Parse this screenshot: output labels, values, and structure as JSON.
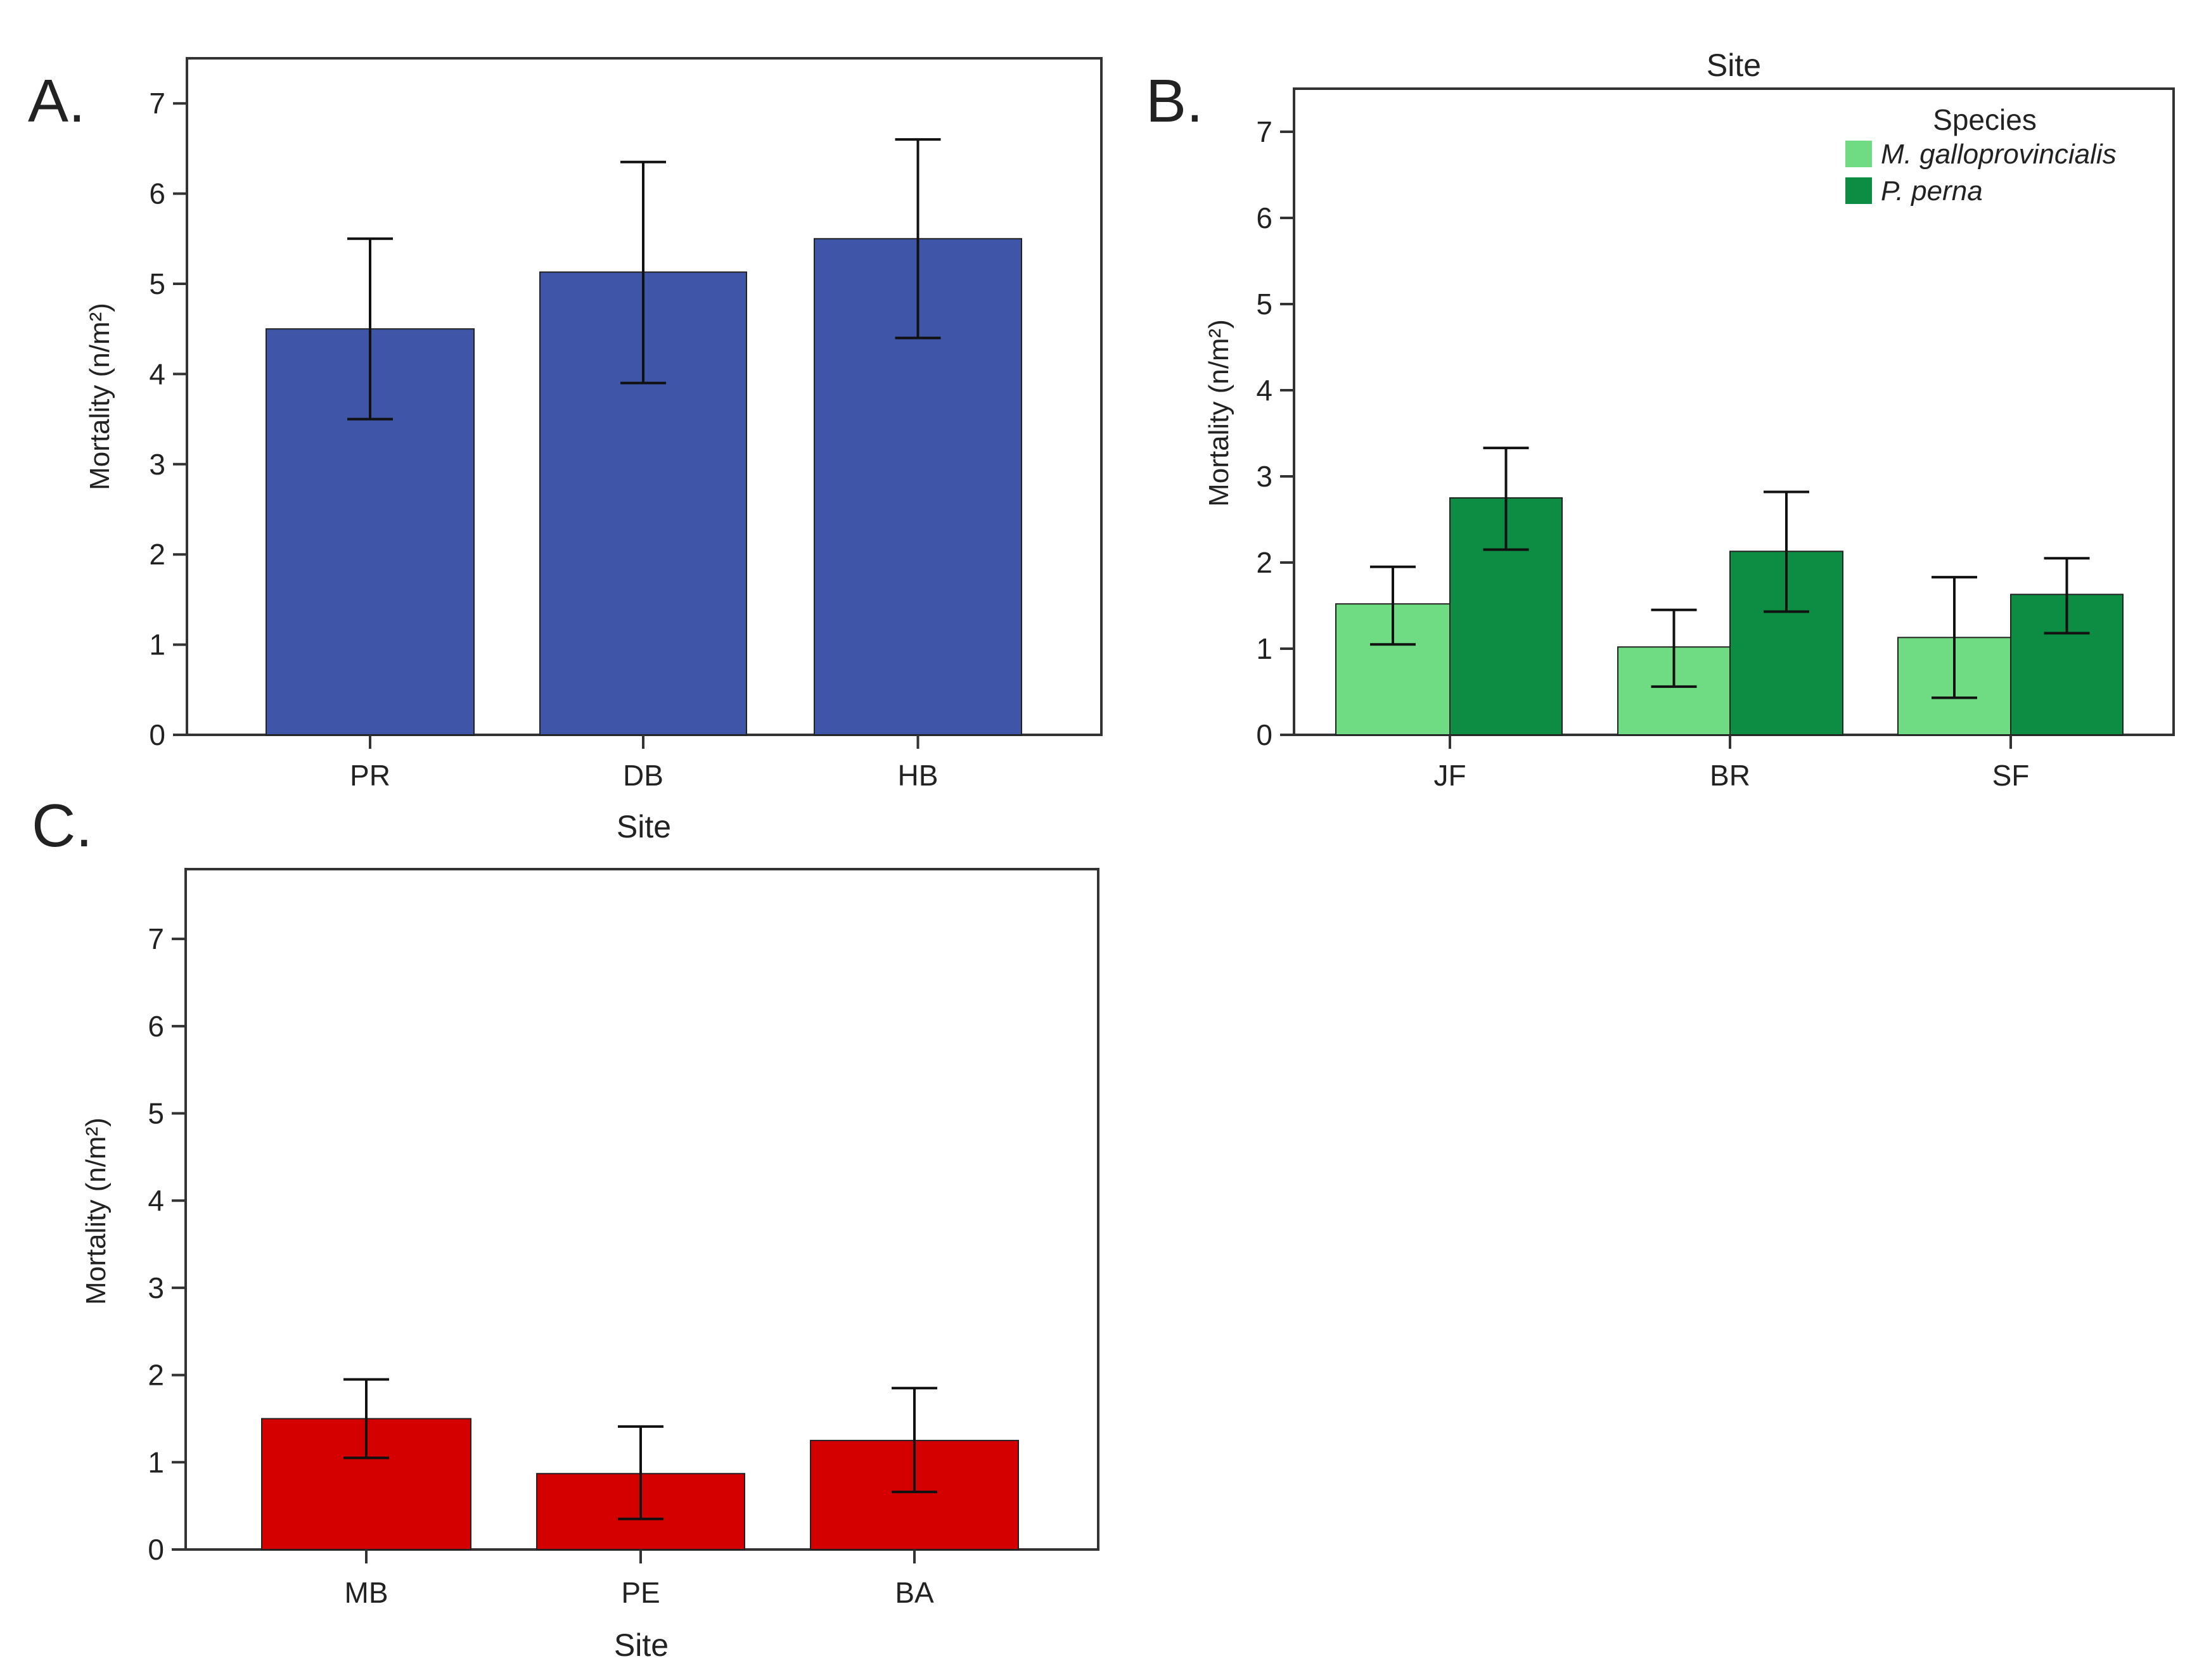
{
  "chart_data": [
    {
      "panel": "A.",
      "type": "bar",
      "title": "",
      "xlabel": "Site",
      "ylabel": "Mortality (n/m²)",
      "ylim": [
        0,
        7.5
      ],
      "yticks": [
        0,
        1,
        2,
        3,
        4,
        5,
        6,
        7
      ],
      "categories": [
        "PR",
        "DB",
        "HB"
      ],
      "series": [
        {
          "values": [
            4.5,
            5.13,
            5.5
          ],
          "err_low": [
            3.5,
            3.9,
            4.4
          ],
          "err_high": [
            5.5,
            6.35,
            6.6
          ],
          "color": "#3f56a8"
        }
      ],
      "grid": false
    },
    {
      "panel": "B.",
      "type": "bar",
      "title": "Site",
      "xlabel": "",
      "ylabel": "Mortality (n/m²)",
      "ylim": [
        0,
        7.5
      ],
      "yticks": [
        0,
        1,
        2,
        3,
        4,
        5,
        6,
        7
      ],
      "categories": [
        "JF",
        "BR",
        "SF"
      ],
      "legend_title": "Species",
      "legend_position": "top-right",
      "series": [
        {
          "name": "M. galloprovincialis",
          "values": [
            1.52,
            1.02,
            1.13
          ],
          "err_low": [
            1.05,
            0.56,
            0.43
          ],
          "err_high": [
            1.95,
            1.45,
            1.83
          ],
          "color": "#6fdc84"
        },
        {
          "name": "P. perna",
          "values": [
            2.75,
            2.13,
            1.63
          ],
          "err_low": [
            2.15,
            1.43,
            1.18
          ],
          "err_high": [
            3.33,
            2.82,
            2.05
          ],
          "color": "#0d8c43"
        }
      ],
      "grid": false
    },
    {
      "panel": "C.",
      "type": "bar",
      "title": "",
      "xlabel": "Site",
      "ylabel": "Mortality (n/m²)",
      "ylim": [
        0,
        7.8
      ],
      "yticks": [
        0,
        1,
        2,
        3,
        4,
        5,
        6,
        7
      ],
      "categories": [
        "MB",
        "PE",
        "BA"
      ],
      "series": [
        {
          "values": [
            1.5,
            0.87,
            1.25
          ],
          "err_low": [
            1.05,
            0.35,
            0.66
          ],
          "err_high": [
            1.95,
            1.41,
            1.85
          ],
          "color": "#d40000"
        }
      ],
      "grid": false
    }
  ]
}
